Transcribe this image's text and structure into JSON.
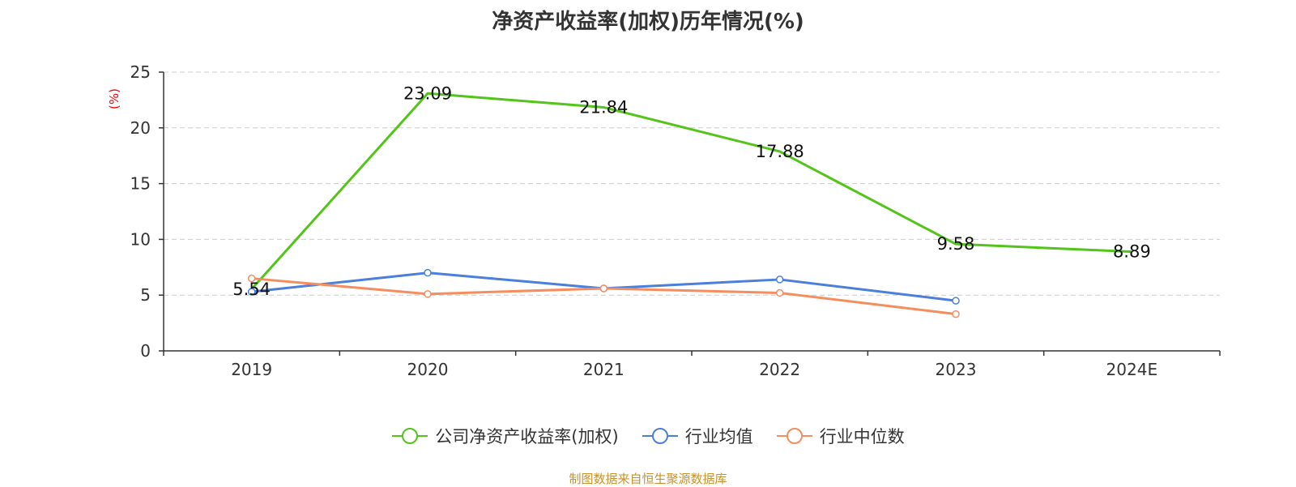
{
  "chart_data": {
    "type": "line",
    "title": "净资产收益率(加权)历年情况(%)",
    "ylabel": "(%)",
    "xlabel": "",
    "categories": [
      "2019",
      "2020",
      "2021",
      "2022",
      "2023",
      "2024E"
    ],
    "ylim": [
      0,
      25
    ],
    "yticks": [
      0,
      5,
      10,
      15,
      20,
      25
    ],
    "grid": true,
    "legend_position": "bottom",
    "series": [
      {
        "name": "公司净资产收益率(加权)",
        "color": "#52c41a",
        "values": [
          5.54,
          23.09,
          21.84,
          17.88,
          9.58,
          8.89
        ],
        "labels": [
          "5.54",
          "23.09",
          "21.84",
          "17.88",
          "9.58",
          "8.89"
        ],
        "show_labels": true,
        "show_markers": false
      },
      {
        "name": "行业均值",
        "color": "#4a7fdc",
        "values": [
          5.3,
          7.0,
          5.6,
          6.4,
          4.5,
          null
        ],
        "show_labels": false,
        "show_markers": true
      },
      {
        "name": "行业中位数",
        "color": "#f58d5e",
        "values": [
          6.5,
          5.1,
          5.6,
          5.2,
          3.3,
          null
        ],
        "show_labels": false,
        "show_markers": true
      }
    ]
  },
  "footer": {
    "source": "制图数据来自恒生聚源数据库"
  }
}
